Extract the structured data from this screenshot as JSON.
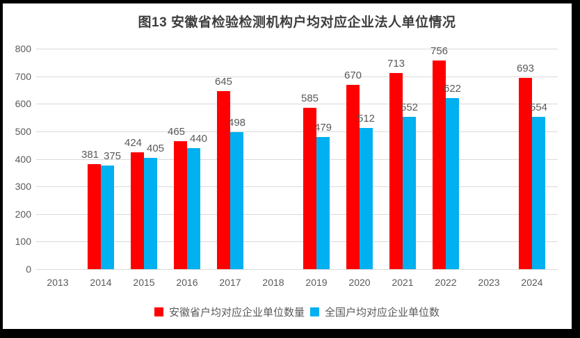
{
  "title": "图13 安徽省检验检测机构户均对应企业法人单位情况",
  "chart_data": {
    "type": "bar",
    "title": "图13 安徽省检验检测机构户均对应企业法人单位情况",
    "categories": [
      "2013",
      "2014",
      "2015",
      "2016",
      "2017",
      "2018",
      "2019",
      "2020",
      "2021",
      "2022",
      "2023",
      "2024"
    ],
    "series": [
      {
        "name": "安徽省户均对应企业单位数量",
        "color": "#FF0000",
        "values": [
          null,
          381,
          424,
          465,
          645,
          null,
          585,
          670,
          713,
          756,
          null,
          693
        ]
      },
      {
        "name": "全国户均对应企业单位数",
        "color": "#00B0F0",
        "values": [
          null,
          375,
          405,
          440,
          498,
          null,
          479,
          512,
          552,
          622,
          null,
          554
        ]
      }
    ],
    "ylim": [
      0,
      800
    ],
    "ytick_interval": 100,
    "yticks": [
      0,
      100,
      200,
      300,
      400,
      500,
      600,
      700,
      800
    ],
    "grid": true,
    "value_labels": true,
    "legend_position": "bottom",
    "xlabel": "",
    "ylabel": ""
  },
  "colors": {
    "series_anhui": "#FF0000",
    "series_national": "#00B0F0",
    "gridline": "#D9D9D9",
    "axis_text": "#595959",
    "value_label_text": "#595959",
    "title_text": "#3D3D3D",
    "frame_border": "#000000",
    "background": "#FFFFFF"
  }
}
